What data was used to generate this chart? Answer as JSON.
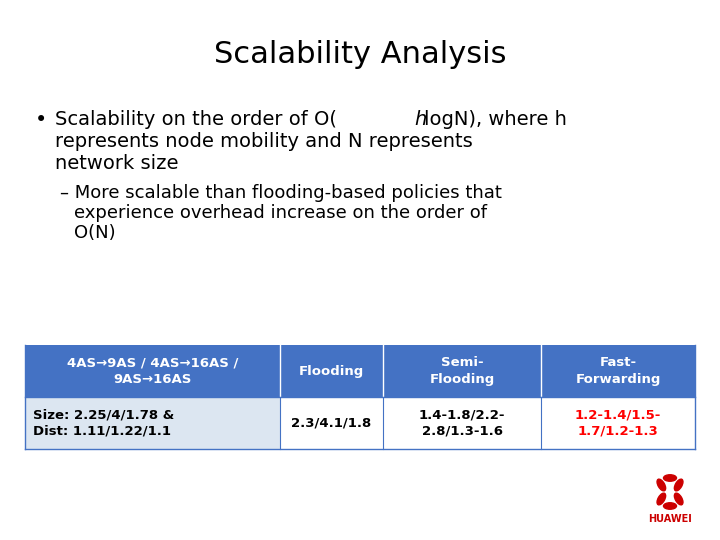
{
  "title": "Scalability Analysis",
  "background_color": "#ffffff",
  "title_fontsize": 22,
  "title_color": "#000000",
  "table_header_bg": "#4472c4",
  "table_header_text_color": "#ffffff",
  "table_row_text_color": "#000000",
  "table_col4_data_color": "#ff0000",
  "table_col1_header": "4AS→9AS / 4AS→16AS /\n9AS→16AS",
  "table_col2_header": "Flooding",
  "table_col3_header": "Semi-\nFlooding",
  "table_col4_header": "Fast-\nForwarding",
  "table_col1_data": "Size: 2.25/4/1.78 &\nDist: 1.11/1.22/1.1",
  "table_col2_data": "2.3/4.1/1.8",
  "table_col3_data": "1.4-1.8/2.2-\n2.8/1.3-1.6",
  "table_col4_data": "1.2-1.4/1.5-\n1.7/1.2-1.3",
  "bullet_fontsize": 14,
  "sub_bullet_fontsize": 13,
  "table_header_fontsize": 9.5,
  "table_data_fontsize": 9.5,
  "huawei_red": "#cc0000"
}
